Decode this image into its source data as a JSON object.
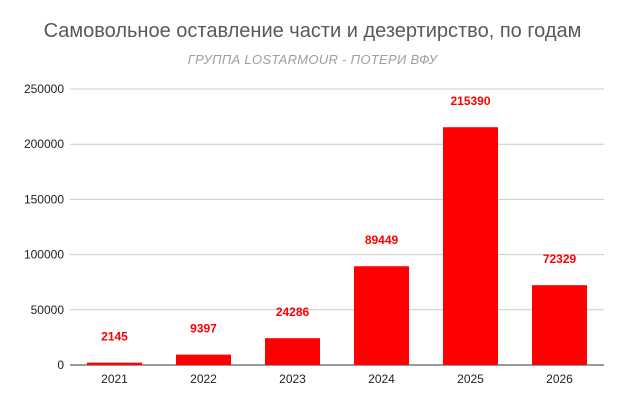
{
  "chart_data": {
    "type": "bar",
    "title": "Самовольное оставление части и дезертирство, по годам",
    "subtitle": "ГРУППА LOSTARMOUR - ПОТЕРИ ВФУ",
    "categories": [
      "2021",
      "2022",
      "2023",
      "2024",
      "2025",
      "2026"
    ],
    "values": [
      2145,
      9397,
      24286,
      89449,
      215390,
      72329
    ],
    "data_labels": [
      "2145",
      "9397",
      "24286",
      "89449",
      "215390",
      "72329"
    ],
    "ylim": [
      0,
      250000
    ],
    "yticks": [
      0,
      50000,
      100000,
      150000,
      200000,
      250000
    ],
    "ytick_labels": [
      "0",
      "50000",
      "100000",
      "150000",
      "200000",
      "250000"
    ],
    "grid": true,
    "legend": "none",
    "bar_color": "#ff0000",
    "grid_color": "#cccccc",
    "axis_color": "#333333"
  }
}
